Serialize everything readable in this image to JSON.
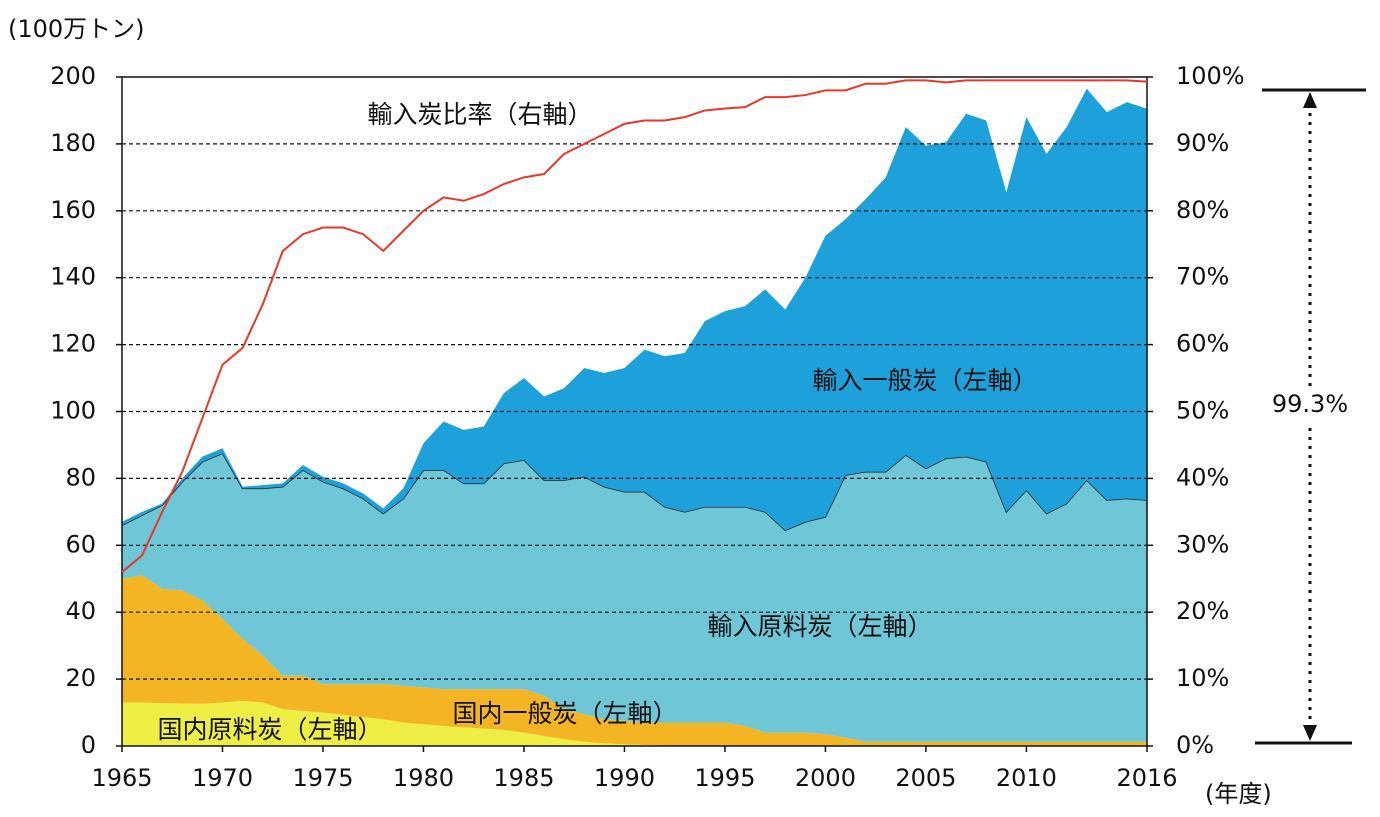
{
  "chart_data": {
    "type": "stacked-area",
    "y_axis_label": "(100万トン)",
    "x_axis_label": "(年度)",
    "annotation": "99.3%",
    "x": [
      1965,
      1966,
      1967,
      1968,
      1969,
      1970,
      1971,
      1972,
      1973,
      1974,
      1975,
      1976,
      1977,
      1978,
      1979,
      1980,
      1981,
      1982,
      1983,
      1984,
      1985,
      1986,
      1987,
      1988,
      1989,
      1990,
      1991,
      1992,
      1993,
      1994,
      1995,
      1996,
      1997,
      1998,
      1999,
      2000,
      2001,
      2002,
      2003,
      2004,
      2005,
      2006,
      2007,
      2008,
      2009,
      2010,
      2011,
      2012,
      2013,
      2014,
      2015,
      2016
    ],
    "xlim": [
      1965,
      2016
    ],
    "xticks": [
      1965,
      1970,
      1975,
      1980,
      1985,
      1990,
      1995,
      2000,
      2005,
      2010,
      2016
    ],
    "ylim": [
      0,
      200
    ],
    "yticks": [
      0,
      20,
      40,
      60,
      80,
      100,
      120,
      140,
      160,
      180,
      200
    ],
    "y2lim": [
      0,
      100
    ],
    "y2ticks": [
      {
        "value": 0,
        "label": "0%"
      },
      {
        "value": 10,
        "label": "10%"
      },
      {
        "value": 20,
        "label": "20%"
      },
      {
        "value": 30,
        "label": "30%"
      },
      {
        "value": 40,
        "label": "40%"
      },
      {
        "value": 50,
        "label": "50%"
      },
      {
        "value": 60,
        "label": "60%"
      },
      {
        "value": 70,
        "label": "70%"
      },
      {
        "value": 80,
        "label": "80%"
      },
      {
        "value": 90,
        "label": "90%"
      },
      {
        "value": 100,
        "label": "100%"
      }
    ],
    "grid": true,
    "series": [
      {
        "name": "国内原料炭（左軸）",
        "color": "#eeee44",
        "values": [
          13,
          13,
          12.8,
          12.7,
          12.6,
          13,
          13.5,
          13,
          11,
          10.5,
          10,
          9.3,
          8.6,
          8,
          7,
          6.5,
          6,
          5.6,
          5.2,
          4.8,
          4,
          3,
          2,
          1.3,
          0.8,
          0.5,
          0.3,
          0.1,
          0,
          0,
          0,
          0,
          0,
          0,
          0,
          0,
          0,
          0,
          0,
          0,
          0,
          0,
          0,
          0,
          0,
          0,
          0,
          0,
          0,
          0,
          0,
          0
        ]
      },
      {
        "name": "国内一般炭（左軸）",
        "color": "#f4b524",
        "values": [
          37,
          38,
          34.2,
          33.8,
          30.9,
          25,
          18.5,
          14,
          10,
          10.5,
          8.5,
          9.2,
          9.9,
          10.5,
          11,
          11,
          11,
          11.4,
          11.8,
          12.2,
          13,
          12,
          9,
          8.2,
          7.2,
          7,
          6.7,
          6.9,
          7,
          7,
          7,
          6,
          4,
          4,
          4,
          3.5,
          2.5,
          1.3,
          1.3,
          1.3,
          1.3,
          1.3,
          1.3,
          1.3,
          1.3,
          1.3,
          1.3,
          1.3,
          1.3,
          1.3,
          1.3,
          1.3
        ]
      },
      {
        "name": "輸入原料炭（左軸）",
        "color": "#6ec6d7",
        "values": [
          16,
          18,
          25,
          32.5,
          41.5,
          49.5,
          45,
          50,
          56.5,
          61.5,
          60.5,
          58.5,
          55.5,
          51,
          56,
          65,
          65.5,
          61.5,
          61.5,
          67.5,
          68.5,
          64.5,
          68.5,
          71,
          69.5,
          68.5,
          69,
          64.5,
          63,
          64.5,
          64.5,
          65.5,
          66,
          60.5,
          63,
          65,
          78.5,
          80.7,
          80.7,
          85.7,
          81.7,
          84.7,
          85.2,
          83.7,
          68.7,
          75.2,
          68.2,
          71.2,
          78.2,
          72.2,
          72.7,
          72.2
        ]
      },
      {
        "name": "輸入一般炭（左軸）",
        "color": "#1ea1db",
        "values": [
          1,
          1,
          0.5,
          1,
          1.5,
          1.5,
          0.5,
          1,
          1,
          1.5,
          1.5,
          1.5,
          1.5,
          1.5,
          3,
          8,
          14.5,
          16,
          17,
          21,
          24.5,
          25,
          27.5,
          32.5,
          34,
          37,
          42.5,
          45,
          47.5,
          55.5,
          58.5,
          60,
          66.5,
          66,
          73,
          84,
          76.5,
          81.5,
          88,
          98,
          96.5,
          94.5,
          102.5,
          102,
          95.5,
          111.5,
          107.5,
          112.5,
          117,
          116,
          118.5,
          117
        ]
      },
      {
        "name": "輸入炭比率（右軸）",
        "color": "#e8382a",
        "axis": "y2",
        "type": "line",
        "values": [
          26,
          28.5,
          35,
          41,
          49,
          57,
          59.5,
          66,
          74,
          76.5,
          77.5,
          77.5,
          76.5,
          74,
          77,
          80,
          82,
          81.5,
          82.5,
          84,
          85,
          85.5,
          88.5,
          90,
          91.5,
          93,
          93.5,
          93.5,
          94,
          95,
          95.3,
          95.5,
          97,
          97,
          97.3,
          98,
          98,
          99,
          99,
          99.5,
          99.5,
          99.2,
          99.5,
          99.5,
          99.5,
          99.5,
          99.5,
          99.5,
          99.5,
          99.5,
          99.5,
          99.3
        ]
      }
    ]
  }
}
